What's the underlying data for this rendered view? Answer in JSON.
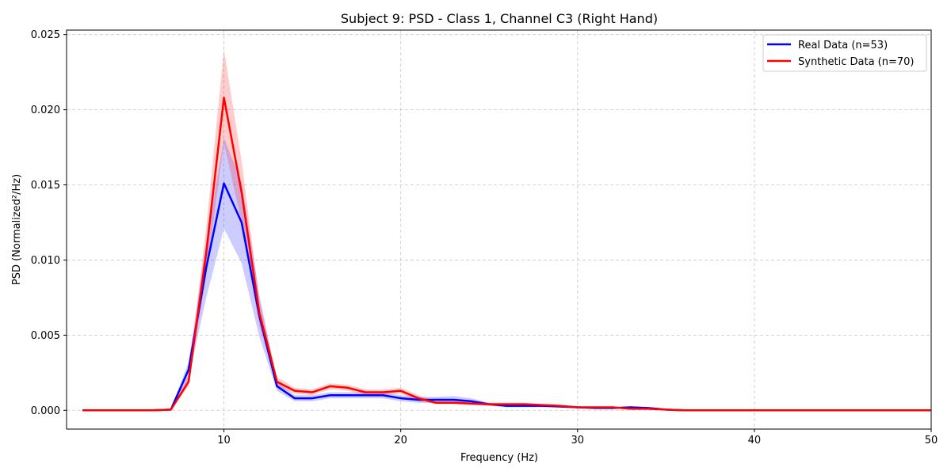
{
  "chart_data": {
    "type": "line",
    "title": "Subject 9: PSD - Class 1, Channel C3 (Right Hand)",
    "xlabel": "Frequency (Hz)",
    "ylabel": "PSD (Normalized²/Hz)",
    "xlim": [
      1.1,
      50
    ],
    "ylim": [
      -0.00125,
      0.0253
    ],
    "xticks": [
      10,
      20,
      30,
      40,
      50
    ],
    "yticks": [
      0.0,
      0.005,
      0.01,
      0.015,
      0.02,
      0.025
    ],
    "xtick_labels": [
      "10",
      "20",
      "30",
      "40",
      "50"
    ],
    "ytick_labels": [
      "0.000",
      "0.005",
      "0.010",
      "0.015",
      "0.020",
      "0.025"
    ],
    "grid": true,
    "legend_position": "top-right",
    "x": [
      2,
      3,
      4,
      5,
      6,
      7,
      8,
      9,
      10,
      11,
      12,
      13,
      14,
      15,
      16,
      17,
      18,
      19,
      20,
      21,
      22,
      23,
      24,
      25,
      26,
      27,
      28,
      29,
      30,
      31,
      32,
      33,
      34,
      35,
      36,
      37,
      38,
      39,
      40,
      41,
      42,
      43,
      44,
      45,
      46,
      47,
      48,
      49,
      50
    ],
    "series": [
      {
        "name": "Real Data (n=53)",
        "color": "#0000ff",
        "values": [
          0,
          0,
          0,
          0,
          0,
          5e-05,
          0.0027,
          0.0095,
          0.0151,
          0.0125,
          0.0063,
          0.0016,
          0.0008,
          0.0008,
          0.001,
          0.001,
          0.001,
          0.001,
          0.0008,
          0.0007,
          0.0007,
          0.0007,
          0.0006,
          0.0004,
          0.0003,
          0.0003,
          0.0003,
          0.00025,
          0.0002,
          0.00015,
          0.00015,
          0.0002,
          0.00015,
          5e-05,
          0,
          0,
          0,
          0,
          0,
          0,
          0,
          0,
          0,
          0,
          0,
          0,
          0,
          0,
          0
        ],
        "lower": [
          0,
          0,
          0,
          0,
          0,
          3e-05,
          0.0021,
          0.0075,
          0.0121,
          0.0098,
          0.0049,
          0.0013,
          0.0006,
          0.0006,
          0.0008,
          0.0008,
          0.0008,
          0.0008,
          0.0006,
          0.0005,
          0.0005,
          0.0005,
          0.0004,
          0.0003,
          0.0002,
          0.0002,
          0.0002,
          0.0002,
          0.00015,
          0.0001,
          0.0001,
          0.00015,
          0.0001,
          3e-05,
          0,
          0,
          0,
          0,
          0,
          0,
          0,
          0,
          0,
          0,
          0,
          0,
          0,
          0,
          0
        ],
        "upper": [
          0,
          0,
          0,
          0,
          0,
          8e-05,
          0.0032,
          0.0112,
          0.0181,
          0.0152,
          0.0077,
          0.0019,
          0.001,
          0.001,
          0.0012,
          0.0012,
          0.0012,
          0.0012,
          0.001,
          0.0009,
          0.0009,
          0.00095,
          0.0008,
          0.0005,
          0.0004,
          0.0004,
          0.0004,
          0.0003,
          0.00025,
          0.0002,
          0.0002,
          0.00025,
          0.0002,
          8e-05,
          0,
          0,
          0,
          0,
          0,
          0,
          0,
          0,
          0,
          0,
          0,
          0,
          0,
          0,
          0
        ]
      },
      {
        "name": "Synthetic Data (n=70)",
        "color": "#ff0000",
        "values": [
          0,
          0,
          0,
          0,
          0,
          5e-05,
          0.0019,
          0.0105,
          0.0208,
          0.0145,
          0.0065,
          0.0019,
          0.0013,
          0.0012,
          0.0016,
          0.0015,
          0.0012,
          0.0012,
          0.0013,
          0.0008,
          0.0005,
          0.0005,
          0.00045,
          0.0004,
          0.0004,
          0.0004,
          0.00035,
          0.0003,
          0.0002,
          0.0002,
          0.0002,
          0.0001,
          0.0001,
          5e-05,
          0,
          0,
          0,
          0,
          0,
          0,
          0,
          0,
          0,
          0,
          0,
          0,
          0,
          0,
          0
        ],
        "lower": [
          0,
          0,
          0,
          0,
          0,
          3e-05,
          0.0016,
          0.009,
          0.0178,
          0.0125,
          0.0057,
          0.0016,
          0.0011,
          0.001,
          0.0014,
          0.0013,
          0.001,
          0.001,
          0.0011,
          0.0006,
          0.0004,
          0.0004,
          0.00035,
          0.0003,
          0.0003,
          0.0003,
          0.0003,
          0.00025,
          0.00015,
          0.00015,
          0.00015,
          8e-05,
          8e-05,
          3e-05,
          0,
          0,
          0,
          0,
          0,
          0,
          0,
          0,
          0,
          0,
          0,
          0,
          0,
          0,
          0
        ],
        "upper": [
          0,
          0,
          0,
          0,
          0,
          8e-05,
          0.0023,
          0.0122,
          0.024,
          0.0166,
          0.0074,
          0.0022,
          0.0015,
          0.0014,
          0.0018,
          0.0017,
          0.0014,
          0.0014,
          0.0015,
          0.001,
          0.0006,
          0.0006,
          0.00055,
          0.0005,
          0.0005,
          0.0005,
          0.0004,
          0.00035,
          0.00025,
          0.00025,
          0.00025,
          0.00012,
          0.00012,
          8e-05,
          0,
          0,
          0,
          0,
          0,
          0,
          0,
          0,
          0,
          0,
          0,
          0,
          0,
          0,
          0
        ]
      }
    ]
  }
}
